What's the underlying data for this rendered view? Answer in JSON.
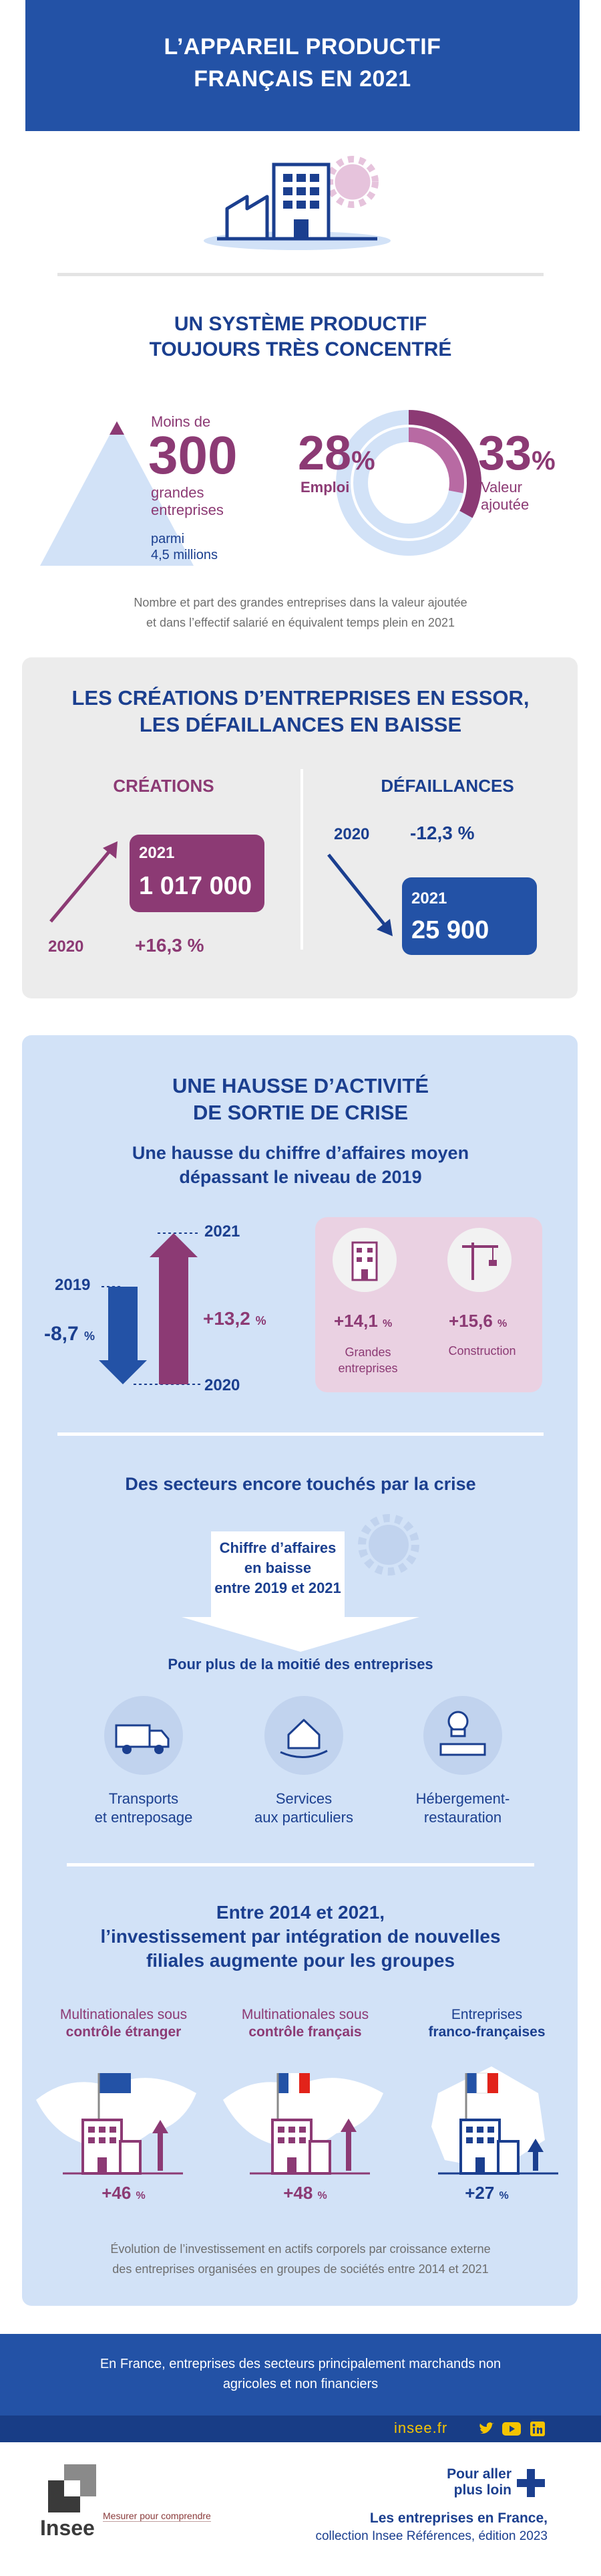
{
  "header": {
    "title_line1": "L’APPAREIL PRODUCTIF",
    "title_line2": "FRANÇAIS EN 2021"
  },
  "s1": {
    "title_line1": "UN SYSTÈME PRODUCTIF",
    "title_line2": "TOUJOURS TRÈS CONCENTRÉ",
    "moins_de": "Moins de",
    "big_number": "300",
    "grandes": "grandes",
    "entreprises": "entreprises",
    "parmi": "parmi",
    "millions": "4,5 millions",
    "emploi_value": "28",
    "emploi_pct": "%",
    "emploi_label": "Emploi",
    "va_value": "33",
    "va_pct": "%",
    "va_label1": "Valeur",
    "va_label2": "ajoutée",
    "caption1": "Nombre et part des grandes entreprises dans la valeur ajoutée",
    "caption2": "et dans l’effectif salarié en équivalent temps plein en 2021",
    "emploi_share": 0.28,
    "va_share": 0.33
  },
  "s2": {
    "title_line1": "LES CRÉATIONS D’ENTREPRISES EN ESSOR,",
    "title_line2": "LES DÉFAILLANCES EN BAISSE",
    "creations_head": "CRÉATIONS",
    "creations_year": "2021",
    "creations_value": "1 017 000",
    "creations_base_year": "2020",
    "creations_change": "+16,3 %",
    "defaillances_head": "DÉFAILLANCES",
    "def_base_year": "2020",
    "def_change": "-12,3 %",
    "def_year": "2021",
    "def_value": "25 900"
  },
  "s3": {
    "title_line1": "UNE HAUSSE D’ACTIVITÉ",
    "title_line2": "DE SORTIE DE CRISE",
    "sub_line1": "Une hausse du chiffre d’affaires moyen",
    "sub_line2": "dépassant le niveau de 2019",
    "y2019": "2019",
    "y2020": "2020",
    "y2021": "2021",
    "drop_value": "-8,7",
    "drop_pct": "%",
    "rise_value": "+13,2",
    "rise_pct": "%",
    "ge_value": "+14,1",
    "ge_pct": "%",
    "ge_label1": "Grandes",
    "ge_label2": "entreprises",
    "cons_value": "+15,6",
    "cons_pct": "%",
    "cons_label": "Construction",
    "sectors_title": "Des secteurs encore touchés par la crise",
    "ca_line1": "Chiffre d’affaires",
    "ca_line2": "en baisse",
    "ca_line3": "entre 2019 et 2021",
    "moitie": "Pour plus de la moitié des entreprises",
    "sec1_l1": "Transports",
    "sec1_l2": "et entreposage",
    "sec2_l1": "Services",
    "sec2_l2": "aux particuliers",
    "sec3_l1": "Hébergement-",
    "sec3_l2": "restauration",
    "inv_line1": "Entre 2014 et 2021,",
    "inv_line2": "l’investissement par intégration de nouvelles",
    "inv_line3": "filiales augmente pour les groupes",
    "g1_l1": "Multinationales sous",
    "g1_l2": "contrôle étranger",
    "g1_value": "+46",
    "g1_pct": "%",
    "g2_l1": "Multinationales sous",
    "g2_l2": "contrôle français",
    "g2_value": "+48",
    "g2_pct": "%",
    "g3_l1": "Entreprises",
    "g3_l2": "franco-françaises",
    "g3_value": "+27",
    "g3_pct": "%",
    "caption1": "Évolution de l’investissement en actifs corporels par croissance externe",
    "caption2": "des entreprises organisées en groupes de sociétés entre 2014 et 2021"
  },
  "footer": {
    "line1": "En France, entreprises des secteurs principalement marchands non",
    "line2": "agricoles et non financiers",
    "site": "insee.fr",
    "pour_aller1": "Pour aller",
    "pour_aller2": "plus loin",
    "ref_title": "Les entreprises en France,",
    "ref_sub": "collection Insee Références, édition 2023",
    "logo_text": "Insee",
    "tagline": "Mesurer pour comprendre"
  },
  "colors": {
    "navy": "#1b3f8f",
    "blue_band": "#2352a6",
    "plum": "#8c3a74",
    "pale_blue": "#d2e2f7",
    "grey_box": "#ececec",
    "pink_panel": "#ead1e2"
  }
}
